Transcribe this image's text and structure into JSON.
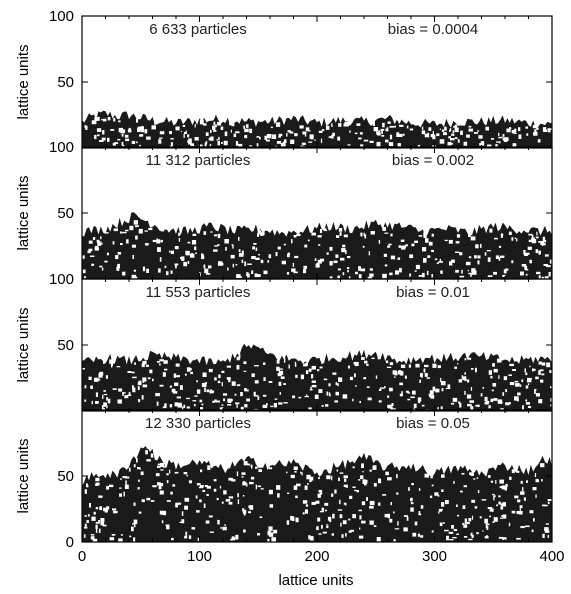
{
  "chart_data": {
    "type": "scatter",
    "description_style": "stacked deposition panels",
    "xlabel": "lattice units",
    "xlim": [
      0,
      400
    ],
    "xticks": [
      0,
      100,
      200,
      300,
      400
    ],
    "point_color": "#1a1a1a",
    "panels": [
      {
        "ylabel": "lattice units",
        "ylim": [
          0,
          100
        ],
        "yticks": [
          50,
          100
        ],
        "particles_label": "6 633 particles",
        "bias_label": "bias = 0.0004",
        "profile": [
          [
            0,
            20
          ],
          [
            10,
            24
          ],
          [
            20,
            26
          ],
          [
            30,
            24
          ],
          [
            40,
            25
          ],
          [
            50,
            23
          ],
          [
            60,
            21
          ],
          [
            80,
            19
          ],
          [
            100,
            21
          ],
          [
            120,
            22
          ],
          [
            140,
            20
          ],
          [
            160,
            20
          ],
          [
            180,
            22
          ],
          [
            200,
            19
          ],
          [
            220,
            21
          ],
          [
            240,
            20
          ],
          [
            260,
            22
          ],
          [
            280,
            19
          ],
          [
            300,
            18
          ],
          [
            320,
            20
          ],
          [
            340,
            20
          ],
          [
            360,
            21
          ],
          [
            380,
            19
          ],
          [
            400,
            18
          ]
        ]
      },
      {
        "ylabel": "lattice units",
        "ylim": [
          0,
          100
        ],
        "yticks": [
          50,
          100
        ],
        "particles_label": "11 312 particles",
        "bias_label": "bias = 0.002",
        "profile": [
          [
            0,
            36
          ],
          [
            20,
            38
          ],
          [
            35,
            44
          ],
          [
            45,
            48
          ],
          [
            55,
            44
          ],
          [
            70,
            38
          ],
          [
            90,
            36
          ],
          [
            110,
            40
          ],
          [
            130,
            36
          ],
          [
            150,
            38
          ],
          [
            170,
            35
          ],
          [
            190,
            37
          ],
          [
            210,
            40
          ],
          [
            230,
            38
          ],
          [
            250,
            42
          ],
          [
            270,
            40
          ],
          [
            290,
            36
          ],
          [
            310,
            38
          ],
          [
            330,
            35
          ],
          [
            350,
            40
          ],
          [
            370,
            38
          ],
          [
            390,
            36
          ],
          [
            400,
            37
          ]
        ]
      },
      {
        "ylabel": "lattice units",
        "ylim": [
          0,
          100
        ],
        "yticks": [
          50,
          100
        ],
        "particles_label": "11 553 particles",
        "bias_label": "bias = 0.01",
        "profile": [
          [
            0,
            36
          ],
          [
            20,
            40
          ],
          [
            40,
            38
          ],
          [
            60,
            42
          ],
          [
            80,
            40
          ],
          [
            100,
            38
          ],
          [
            120,
            36
          ],
          [
            135,
            46
          ],
          [
            145,
            50
          ],
          [
            155,
            44
          ],
          [
            170,
            40
          ],
          [
            190,
            38
          ],
          [
            210,
            40
          ],
          [
            230,
            42
          ],
          [
            250,
            44
          ],
          [
            270,
            38
          ],
          [
            290,
            40
          ],
          [
            310,
            40
          ],
          [
            330,
            42
          ],
          [
            350,
            40
          ],
          [
            370,
            38
          ],
          [
            390,
            40
          ],
          [
            400,
            38
          ]
        ]
      },
      {
        "ylabel": "lattice units",
        "ylim": [
          0,
          100
        ],
        "yticks": [
          0,
          50
        ],
        "particles_label": "12 330 particles",
        "bias_label": "bias = 0.05",
        "profile": [
          [
            0,
            46
          ],
          [
            15,
            52
          ],
          [
            30,
            50
          ],
          [
            45,
            65
          ],
          [
            55,
            74
          ],
          [
            65,
            62
          ],
          [
            80,
            58
          ],
          [
            100,
            60
          ],
          [
            120,
            55
          ],
          [
            140,
            62
          ],
          [
            160,
            58
          ],
          [
            180,
            60
          ],
          [
            200,
            52
          ],
          [
            220,
            58
          ],
          [
            240,
            64
          ],
          [
            260,
            56
          ],
          [
            280,
            58
          ],
          [
            300,
            52
          ],
          [
            320,
            56
          ],
          [
            340,
            52
          ],
          [
            360,
            58
          ],
          [
            380,
            54
          ],
          [
            395,
            64
          ],
          [
            400,
            60
          ]
        ]
      }
    ],
    "xticklabels": [
      "0",
      "100",
      "200",
      "300",
      "400"
    ]
  }
}
